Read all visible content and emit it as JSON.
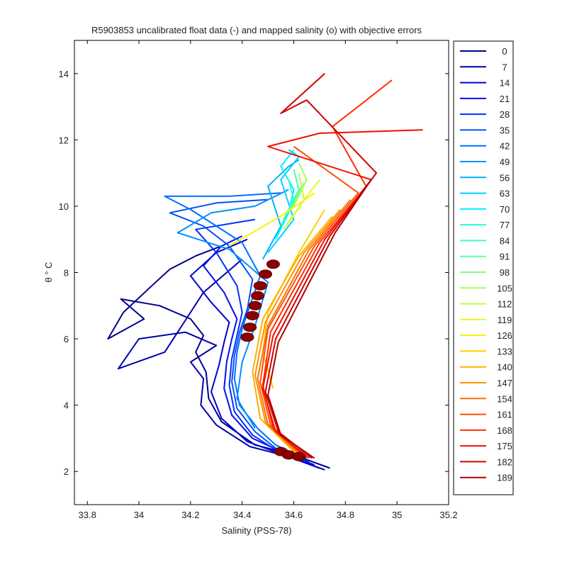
{
  "chart_data": {
    "type": "line",
    "title": "R5903853 uncalibrated float data (-) and mapped salinity (o) with objective errors",
    "xlabel": "Salinity (PSS-78)",
    "ylabel": "θ ° C",
    "xlim": [
      33.75,
      35.2
    ],
    "ylim": [
      1,
      15
    ],
    "xticks": [
      "33.8",
      "34",
      "34.2",
      "34.4",
      "34.6",
      "34.8",
      "35",
      "35.2"
    ],
    "xtick_values": [
      33.8,
      34.0,
      34.2,
      34.4,
      34.6,
      34.8,
      35.0,
      35.2
    ],
    "yticks": [
      "2",
      "4",
      "6",
      "8",
      "10",
      "12",
      "14"
    ],
    "ytick_values": [
      2,
      4,
      6,
      8,
      10,
      12,
      14
    ],
    "grid": false,
    "legend_position": "outside-right",
    "legend": [
      "0",
      "7",
      "14",
      "21",
      "28",
      "35",
      "42",
      "49",
      "56",
      "63",
      "70",
      "77",
      "84",
      "91",
      "98",
      "105",
      "112",
      "119",
      "126",
      "133",
      "140",
      "147",
      "154",
      "161",
      "168",
      "175",
      "182",
      "189"
    ],
    "legend_colors": [
      "#00008f",
      "#0000b0",
      "#0000d0",
      "#0010f0",
      "#0030ff",
      "#0050ff",
      "#0070ff",
      "#0090ff",
      "#00b0ff",
      "#00d0ff",
      "#00f0ff",
      "#20ffdf",
      "#40ffbf",
      "#60ff9f",
      "#80ff80",
      "#a0ff60",
      "#c0ff40",
      "#e0ff20",
      "#ffef00",
      "#ffcf00",
      "#ffaf00",
      "#ff8f00",
      "#ff6f00",
      "#ff4f00",
      "#ff2f00",
      "#f00f00",
      "#d00000",
      "#b00000"
    ],
    "series": [
      {
        "name": "0",
        "color": "#00008f",
        "x": [
          34.74,
          34.6,
          34.45,
          34.32,
          34.27,
          34.26,
          34.22,
          34.25,
          34.2,
          34.08,
          33.93,
          34.02,
          33.88,
          33.94,
          34.05,
          34.12,
          34.22,
          34.32
        ],
        "y": [
          2.1,
          2.5,
          2.8,
          3.5,
          4.2,
          5.0,
          5.6,
          6.1,
          6.6,
          7.0,
          7.2,
          6.6,
          6.0,
          6.8,
          7.6,
          8.1,
          8.5,
          8.8
        ]
      },
      {
        "name": "7",
        "color": "#0000b0",
        "x": [
          34.72,
          34.58,
          34.43,
          34.3,
          34.24,
          34.25,
          34.2,
          34.3,
          34.18,
          34.0,
          33.92,
          34.1,
          34.25,
          34.4
        ],
        "y": [
          2.05,
          2.45,
          2.75,
          3.4,
          4.0,
          4.8,
          5.3,
          5.8,
          6.2,
          6.0,
          5.1,
          5.6,
          7.4,
          8.4
        ]
      },
      {
        "name": "14",
        "color": "#0000d0",
        "x": [
          34.7,
          34.56,
          34.42,
          34.32,
          34.28,
          34.31,
          34.33,
          34.35,
          34.28,
          34.2,
          34.3,
          34.42
        ],
        "y": [
          2.1,
          2.5,
          2.9,
          3.6,
          4.4,
          5.2,
          5.9,
          6.5,
          7.1,
          7.9,
          8.6,
          9.0
        ]
      },
      {
        "name": "21",
        "color": "#0010f0",
        "x": [
          34.68,
          34.55,
          34.44,
          34.36,
          34.33,
          34.34,
          34.36,
          34.38,
          34.33,
          34.25,
          34.32,
          34.4
        ],
        "y": [
          2.2,
          2.6,
          3.0,
          3.7,
          4.5,
          5.3,
          6.0,
          6.6,
          7.4,
          8.2,
          8.8,
          9.1
        ]
      },
      {
        "name": "28",
        "color": "#0030ff",
        "x": [
          34.66,
          34.54,
          34.44,
          34.37,
          34.35,
          34.36,
          34.38,
          34.4,
          34.38,
          34.3,
          34.22,
          34.45
        ],
        "y": [
          2.3,
          2.6,
          3.1,
          3.8,
          4.6,
          5.4,
          6.1,
          6.8,
          7.6,
          8.6,
          9.3,
          9.6
        ]
      },
      {
        "name": "35",
        "color": "#0050ff",
        "x": [
          34.65,
          34.53,
          34.45,
          34.38,
          34.36,
          34.37,
          34.39,
          34.42,
          34.44,
          34.35,
          34.25,
          34.12,
          34.3,
          34.5
        ],
        "y": [
          2.4,
          2.7,
          3.2,
          3.9,
          4.7,
          5.5,
          6.2,
          6.9,
          7.8,
          8.8,
          9.4,
          9.8,
          10.1,
          10.2
        ]
      },
      {
        "name": "42",
        "color": "#0070ff",
        "x": [
          34.64,
          34.53,
          34.46,
          34.39,
          34.37,
          34.38,
          34.4,
          34.43,
          34.47,
          34.4,
          34.2,
          34.1,
          34.35,
          34.55
        ],
        "y": [
          2.4,
          2.8,
          3.3,
          4.0,
          4.8,
          5.6,
          6.3,
          7.0,
          7.9,
          8.9,
          9.9,
          10.3,
          10.3,
          10.4
        ]
      },
      {
        "name": "49",
        "color": "#0090ff",
        "x": [
          34.45,
          34.38,
          34.4,
          34.45,
          34.5,
          34.35,
          34.15,
          34.28,
          34.45,
          34.58
        ],
        "y": [
          3.3,
          4.2,
          5.3,
          6.4,
          7.7,
          8.7,
          9.2,
          9.8,
          10.0,
          10.5
        ]
      },
      {
        "name": "56",
        "color": "#00b0ff",
        "x": [
          34.48,
          34.55,
          34.5,
          34.58,
          34.62
        ],
        "y": [
          8.4,
          9.4,
          10.6,
          11.2,
          11.4
        ]
      },
      {
        "name": "63",
        "color": "#00d0ff",
        "x": [
          34.5,
          34.6,
          34.55,
          34.62,
          34.58
        ],
        "y": [
          8.6,
          9.6,
          10.8,
          11.5,
          11.7
        ]
      },
      {
        "name": "70",
        "color": "#00f0ff",
        "x": [
          34.53,
          34.58,
          34.6,
          34.55,
          34.6
        ],
        "y": [
          9.0,
          9.8,
          10.5,
          11.2,
          11.7
        ]
      },
      {
        "name": "77",
        "color": "#20ffdf",
        "x": [
          34.55,
          34.6,
          34.58
        ],
        "y": [
          9.4,
          10.2,
          10.8
        ]
      },
      {
        "name": "84",
        "color": "#40ffbf",
        "x": [
          34.56,
          34.62,
          34.6
        ],
        "y": [
          9.6,
          10.5,
          11.1
        ]
      },
      {
        "name": "91",
        "color": "#60ff9f",
        "x": [
          34.58,
          34.63
        ],
        "y": [
          9.8,
          10.6
        ]
      },
      {
        "name": "98",
        "color": "#80ff80",
        "x": [
          34.59,
          34.64
        ],
        "y": [
          9.9,
          10.7
        ]
      },
      {
        "name": "105",
        "color": "#a0ff60",
        "x": [
          34.6,
          34.65,
          34.62
        ],
        "y": [
          10.0,
          10.8,
          11.3
        ]
      },
      {
        "name": "112",
        "color": "#c0ff40",
        "x": [
          34.56,
          34.64,
          34.62
        ],
        "y": [
          9.3,
          10.2,
          11.0
        ]
      },
      {
        "name": "119",
        "color": "#e0ff20",
        "x": [
          34.58,
          34.65,
          34.7
        ],
        "y": [
          9.5,
          10.3,
          10.8
        ]
      },
      {
        "name": "126",
        "color": "#ffef00",
        "x": [
          34.35,
          34.55,
          34.68
        ],
        "y": [
          8.8,
          9.7,
          10.4
        ]
      },
      {
        "name": "133",
        "color": "#ffcf00",
        "x": [
          34.52,
          34.48,
          34.5,
          34.62,
          34.72
        ],
        "y": [
          4.5,
          5.6,
          6.8,
          8.6,
          9.9
        ]
      },
      {
        "name": "140",
        "color": "#ffaf00",
        "x": [
          34.6,
          34.47,
          34.44,
          34.48,
          34.62,
          34.75
        ],
        "y": [
          2.6,
          3.6,
          5.0,
          6.6,
          8.5,
          9.7
        ]
      },
      {
        "name": "147",
        "color": "#ff8f00",
        "x": [
          34.62,
          34.49,
          34.45,
          34.49,
          34.64,
          34.78
        ],
        "y": [
          2.5,
          3.5,
          4.9,
          6.5,
          8.6,
          9.9
        ]
      },
      {
        "name": "154",
        "color": "#ff6f00",
        "x": [
          34.63,
          34.5,
          34.46,
          34.5,
          34.66,
          34.82
        ],
        "y": [
          2.5,
          3.4,
          4.8,
          6.4,
          8.7,
          10.2
        ]
      },
      {
        "name": "161",
        "color": "#ff4f00",
        "x": [
          34.64,
          34.51,
          34.47,
          34.5,
          34.68,
          34.85,
          34.6
        ],
        "y": [
          2.45,
          3.4,
          4.7,
          6.3,
          8.8,
          10.4,
          11.8
        ]
      },
      {
        "name": "168",
        "color": "#ff2f00",
        "x": [
          34.65,
          34.52,
          34.48,
          34.51,
          34.7,
          34.88,
          34.75,
          34.98
        ],
        "y": [
          2.4,
          3.3,
          4.6,
          6.2,
          8.9,
          10.6,
          12.4,
          13.8
        ]
      },
      {
        "name": "175",
        "color": "#f00f00",
        "x": [
          34.66,
          34.53,
          34.48,
          34.52,
          34.72,
          34.9,
          34.5,
          34.7,
          35.1
        ],
        "y": [
          2.4,
          3.2,
          4.5,
          6.1,
          9.0,
          10.8,
          11.8,
          12.2,
          12.3
        ]
      },
      {
        "name": "182",
        "color": "#d00000",
        "x": [
          34.67,
          34.54,
          34.49,
          34.53,
          34.74,
          34.92,
          34.65,
          34.55,
          34.72
        ],
        "y": [
          2.4,
          3.2,
          4.4,
          6.0,
          9.1,
          11.0,
          13.2,
          12.8,
          14.0
        ]
      },
      {
        "name": "189",
        "color": "#b00000",
        "x": [
          34.68,
          34.55,
          34.5,
          34.54,
          34.76,
          34.9
        ],
        "y": [
          2.4,
          3.1,
          4.3,
          5.9,
          9.2,
          10.8
        ]
      }
    ],
    "mapped_salinity": {
      "marker": "o",
      "color": "#8b0000",
      "x": [
        34.42,
        34.43,
        34.44,
        34.45,
        34.46,
        34.47,
        34.49,
        34.52,
        34.55,
        34.58,
        34.62
      ],
      "y": [
        6.05,
        6.35,
        6.7,
        7.0,
        7.3,
        7.6,
        7.95,
        8.25,
        2.6,
        2.5,
        2.45
      ]
    }
  }
}
